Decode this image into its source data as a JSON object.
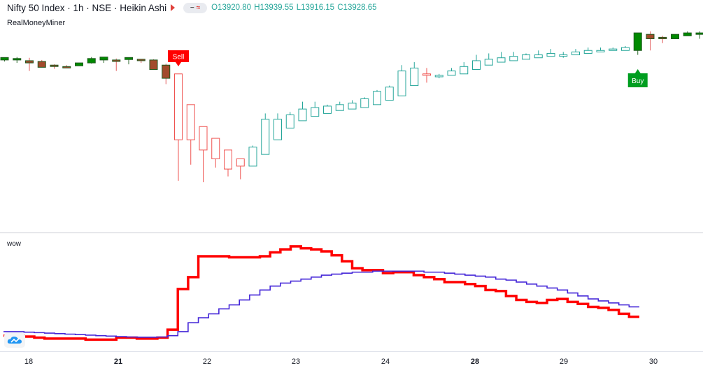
{
  "header": {
    "title": "Nifty 50 Index · 1h · NSE · Heikin Ashi",
    "ohlc": [
      {
        "label": "O",
        "value": "13920.80"
      },
      {
        "label": "H",
        "value": "13939.55"
      },
      {
        "label": "L",
        "value": "13916.15"
      },
      {
        "label": "C",
        "value": "13928.65"
      }
    ],
    "source": "RealMoneyMiner"
  },
  "indicator": {
    "name": "wow"
  },
  "signals": {
    "sell": "Sell",
    "buy": "Buy"
  },
  "colors": {
    "up_hollow": "#26a69a",
    "down_hollow": "#ef5350",
    "buy_fill": "#008a00",
    "label_sell": "#ff0000",
    "label_buy": "#009e20",
    "fast_line": "#ff0000",
    "slow_line": "#4527d8"
  },
  "chart_data": [
    {
      "type": "candlestick",
      "style": "Heikin Ashi",
      "x_ticks": [
        "18",
        "21",
        "22",
        "23",
        "24",
        "28",
        "29",
        "30"
      ],
      "bold_ticks": [
        "21",
        "28"
      ],
      "y_axis": "not shown",
      "candles": [
        {
          "o": 0.915,
          "h": 0.925,
          "l": 0.905,
          "c": 0.932,
          "s": "gf"
        },
        {
          "o": 0.925,
          "h": 0.935,
          "l": 0.895,
          "c": 0.915,
          "s": "gf"
        },
        {
          "o": 0.91,
          "h": 0.93,
          "l": 0.84,
          "c": 0.895,
          "s": "gr"
        },
        {
          "o": 0.905,
          "h": 0.915,
          "l": 0.87,
          "c": 0.865,
          "s": "gr"
        },
        {
          "o": 0.88,
          "h": 0.885,
          "l": 0.855,
          "c": 0.875,
          "s": "gr"
        },
        {
          "o": 0.87,
          "h": 0.88,
          "l": 0.86,
          "c": 0.865,
          "s": "gr"
        },
        {
          "o": 0.875,
          "h": 0.895,
          "l": 0.875,
          "c": 0.895,
          "s": "gf"
        },
        {
          "o": 0.895,
          "h": 0.935,
          "l": 0.89,
          "c": 0.925,
          "s": "gf"
        },
        {
          "o": 0.915,
          "h": 0.93,
          "l": 0.895,
          "c": 0.935,
          "s": "gf"
        },
        {
          "o": 0.915,
          "h": 0.925,
          "l": 0.84,
          "c": 0.905,
          "s": "gr"
        },
        {
          "o": 0.918,
          "h": 0.93,
          "l": 0.885,
          "c": 0.932,
          "s": "gf"
        },
        {
          "o": 0.92,
          "h": 0.92,
          "l": 0.895,
          "c": 0.91,
          "s": "gr"
        },
        {
          "o": 0.915,
          "h": 0.92,
          "l": 0.85,
          "c": 0.85,
          "s": "gr"
        },
        {
          "o": 0.88,
          "h": 0.89,
          "l": 0.75,
          "c": 0.79,
          "s": "gr"
        },
        {
          "o": 0.82,
          "h": 0.82,
          "l": 0.09,
          "c": 0.37,
          "s": "rh"
        },
        {
          "o": 0.61,
          "h": 0.61,
          "l": 0.2,
          "c": 0.37,
          "s": "rh"
        },
        {
          "o": 0.46,
          "h": 0.46,
          "l": 0.08,
          "c": 0.3,
          "s": "rh"
        },
        {
          "o": 0.38,
          "h": 0.38,
          "l": 0.18,
          "c": 0.24,
          "s": "rh"
        },
        {
          "o": 0.3,
          "h": 0.3,
          "l": 0.12,
          "c": 0.17,
          "s": "rh"
        },
        {
          "o": 0.24,
          "h": 0.24,
          "l": 0.1,
          "c": 0.19,
          "s": "rh"
        },
        {
          "o": 0.19,
          "h": 0.33,
          "l": 0.19,
          "c": 0.32,
          "s": "uh"
        },
        {
          "o": 0.27,
          "h": 0.55,
          "l": 0.27,
          "c": 0.51,
          "s": "uh"
        },
        {
          "o": 0.37,
          "h": 0.55,
          "l": 0.37,
          "c": 0.51,
          "s": "uh"
        },
        {
          "o": 0.45,
          "h": 0.56,
          "l": 0.45,
          "c": 0.54,
          "s": "uh"
        },
        {
          "o": 0.5,
          "h": 0.63,
          "l": 0.5,
          "c": 0.58,
          "s": "uh"
        },
        {
          "o": 0.53,
          "h": 0.63,
          "l": 0.53,
          "c": 0.59,
          "s": "uh"
        },
        {
          "o": 0.55,
          "h": 0.61,
          "l": 0.55,
          "c": 0.6,
          "s": "uh"
        },
        {
          "o": 0.57,
          "h": 0.63,
          "l": 0.57,
          "c": 0.61,
          "s": "uh"
        },
        {
          "o": 0.58,
          "h": 0.64,
          "l": 0.58,
          "c": 0.62,
          "s": "uh"
        },
        {
          "o": 0.59,
          "h": 0.66,
          "l": 0.59,
          "c": 0.65,
          "s": "uh"
        },
        {
          "o": 0.61,
          "h": 0.71,
          "l": 0.61,
          "c": 0.7,
          "s": "uh"
        },
        {
          "o": 0.64,
          "h": 0.74,
          "l": 0.64,
          "c": 0.73,
          "s": "uh"
        },
        {
          "o": 0.67,
          "h": 0.88,
          "l": 0.67,
          "c": 0.84,
          "s": "uh"
        },
        {
          "o": 0.74,
          "h": 0.9,
          "l": 0.74,
          "c": 0.86,
          "s": "uh"
        },
        {
          "o": 0.81,
          "h": 0.86,
          "l": 0.76,
          "c": 0.82,
          "s": "rh"
        },
        {
          "o": 0.8,
          "h": 0.82,
          "l": 0.79,
          "c": 0.81,
          "s": "uh"
        },
        {
          "o": 0.81,
          "h": 0.86,
          "l": 0.81,
          "c": 0.84,
          "s": "uh"
        },
        {
          "o": 0.82,
          "h": 0.9,
          "l": 0.82,
          "c": 0.87,
          "s": "uh"
        },
        {
          "o": 0.85,
          "h": 0.95,
          "l": 0.85,
          "c": 0.91,
          "s": "uh"
        },
        {
          "o": 0.88,
          "h": 0.96,
          "l": 0.88,
          "c": 0.92,
          "s": "uh"
        },
        {
          "o": 0.9,
          "h": 0.97,
          "l": 0.9,
          "c": 0.93,
          "s": "uh"
        },
        {
          "o": 0.91,
          "h": 0.97,
          "l": 0.91,
          "c": 0.94,
          "s": "uh"
        },
        {
          "o": 0.92,
          "h": 0.96,
          "l": 0.92,
          "c": 0.95,
          "s": "uh"
        },
        {
          "o": 0.93,
          "h": 0.98,
          "l": 0.93,
          "c": 0.95,
          "s": "uh"
        },
        {
          "o": 0.94,
          "h": 0.99,
          "l": 0.94,
          "c": 0.96,
          "s": "uh"
        },
        {
          "o": 0.95,
          "h": 0.97,
          "l": 0.93,
          "c": 0.95,
          "s": "uh"
        },
        {
          "o": 0.95,
          "h": 0.99,
          "l": 0.95,
          "c": 0.97,
          "s": "uh"
        },
        {
          "o": 0.96,
          "h": 1.0,
          "l": 0.96,
          "c": 0.98,
          "s": "uh"
        },
        {
          "o": 0.97,
          "h": 1.0,
          "l": 0.97,
          "c": 0.98,
          "s": "uh"
        },
        {
          "o": 0.98,
          "h": 1.0,
          "l": 0.98,
          "c": 0.99,
          "s": "uh"
        },
        {
          "o": 0.98,
          "h": 1.01,
          "l": 0.98,
          "c": 1.0,
          "s": "uh"
        },
        {
          "o": 0.98,
          "h": 1.1,
          "l": 0.95,
          "c": 1.1,
          "s": "gf"
        },
        {
          "o": 1.09,
          "h": 1.11,
          "l": 0.98,
          "c": 1.06,
          "s": "gr"
        },
        {
          "o": 1.06,
          "h": 1.08,
          "l": 1.03,
          "c": 1.07,
          "s": "gr"
        },
        {
          "o": 1.06,
          "h": 1.09,
          "l": 1.06,
          "c": 1.09,
          "s": "gf"
        },
        {
          "o": 1.08,
          "h": 1.11,
          "l": 1.08,
          "c": 1.1,
          "s": "gf"
        },
        {
          "o": 1.09,
          "h": 1.11,
          "l": 1.06,
          "c": 1.1,
          "s": "gf"
        },
        {
          "o": 1.09,
          "h": 1.12,
          "l": 1.09,
          "c": 1.11,
          "s": "gf"
        }
      ],
      "markers": [
        {
          "type": "sell",
          "candle_index": 14,
          "text": "Sell"
        },
        {
          "type": "buy",
          "candle_index": 51,
          "text": "Buy"
        }
      ]
    },
    {
      "type": "line",
      "title": "wow",
      "line_shape": "step",
      "ylim": [
        0,
        1
      ],
      "series": [
        {
          "color": "#ff0000",
          "values": [
            0.08,
            0.08,
            0.07,
            0.06,
            0.05,
            0.05,
            0.05,
            0.05,
            0.04,
            0.04,
            0.04,
            0.06,
            0.06,
            0.05,
            0.05,
            0.06,
            0.14,
            0.55,
            0.67,
            0.88,
            0.88,
            0.88,
            0.87,
            0.87,
            0.87,
            0.88,
            0.92,
            0.95,
            0.98,
            0.96,
            0.95,
            0.93,
            0.89,
            0.83,
            0.76,
            0.74,
            0.74,
            0.71,
            0.72,
            0.72,
            0.69,
            0.67,
            0.65,
            0.62,
            0.62,
            0.6,
            0.58,
            0.54,
            0.53,
            0.48,
            0.44,
            0.42,
            0.41,
            0.44,
            0.45,
            0.42,
            0.4,
            0.37,
            0.36,
            0.34,
            0.3,
            0.27
          ]
        },
        {
          "color": "#4527d8",
          "values": [
            0.12,
            0.12,
            0.115,
            0.11,
            0.105,
            0.1,
            0.095,
            0.09,
            0.085,
            0.08,
            0.075,
            0.07,
            0.066,
            0.064,
            0.064,
            0.066,
            0.08,
            0.12,
            0.21,
            0.26,
            0.3,
            0.35,
            0.39,
            0.44,
            0.49,
            0.54,
            0.58,
            0.61,
            0.63,
            0.65,
            0.67,
            0.69,
            0.7,
            0.71,
            0.72,
            0.72,
            0.73,
            0.73,
            0.73,
            0.73,
            0.73,
            0.72,
            0.72,
            0.71,
            0.7,
            0.69,
            0.68,
            0.67,
            0.65,
            0.64,
            0.62,
            0.6,
            0.58,
            0.56,
            0.54,
            0.51,
            0.48,
            0.45,
            0.43,
            0.41,
            0.39,
            0.37
          ]
        }
      ]
    }
  ]
}
